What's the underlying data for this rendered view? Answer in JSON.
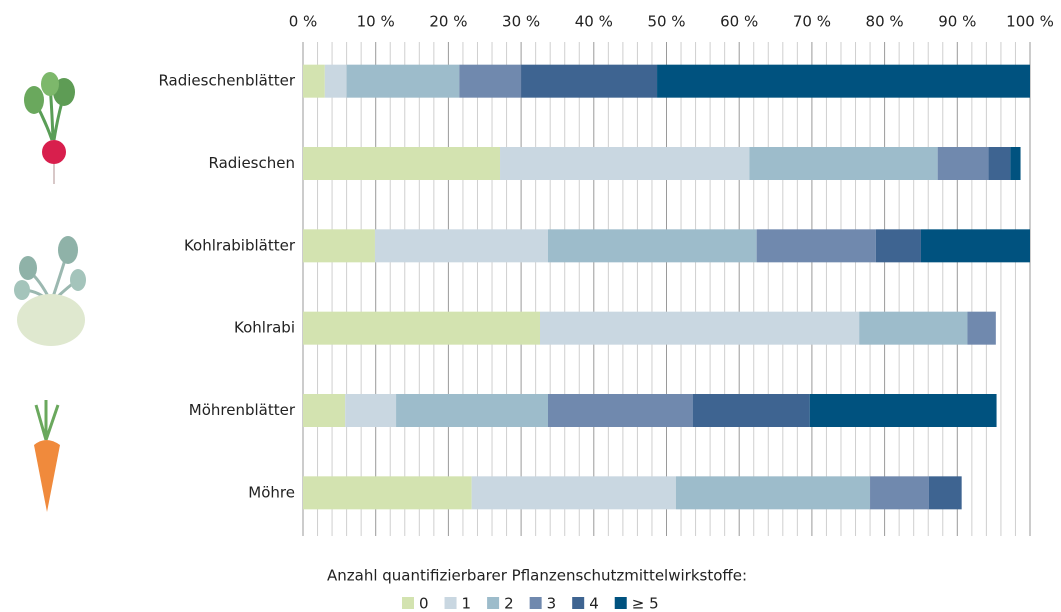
{
  "chart_data": {
    "type": "stacked-bar-horizontal",
    "categories": [
      "Radieschenblätter",
      "Radieschen",
      "Kohlrabiblätter",
      "Kohlrabi",
      "Möhrenblätter",
      "Möhre"
    ],
    "series": [
      {
        "name": "0",
        "color": "#d3e3b0",
        "values": [
          3,
          27.1,
          9.9,
          32.6,
          5.8,
          23.2
        ]
      },
      {
        "name": "1",
        "color": "#c9d7e1",
        "values": [
          3,
          34.3,
          23.8,
          43.9,
          7,
          28.1
        ]
      },
      {
        "name": "2",
        "color": "#9dbccb",
        "values": [
          15.5,
          25.9,
          28.7,
          14.9,
          20.9,
          26.7
        ]
      },
      {
        "name": "3",
        "color": "#7089ae",
        "values": [
          8.5,
          7,
          16.4,
          3.9,
          19.9,
          8.1
        ]
      },
      {
        "name": "4",
        "color": "#3e6491",
        "values": [
          18.7,
          3,
          6.2,
          0,
          16.1,
          4.5
        ]
      },
      {
        "name": "≥ 5",
        "color": "#00527f",
        "values": [
          51.3,
          1.4,
          15,
          0,
          25.7,
          0
        ]
      }
    ],
    "xlim": [
      0,
      100
    ],
    "xticks": [
      {
        "value": 0,
        "label": "0 %"
      },
      {
        "value": 10,
        "label": "10 %"
      },
      {
        "value": 20,
        "label": "20 %"
      },
      {
        "value": 30,
        "label": "30 %"
      },
      {
        "value": 40,
        "label": "40 %"
      },
      {
        "value": 50,
        "label": "50 %"
      },
      {
        "value": 60,
        "label": "60 %"
      },
      {
        "value": 70,
        "label": "70 %"
      },
      {
        "value": 80,
        "label": "80 %"
      },
      {
        "value": 90,
        "label": "90 %"
      },
      {
        "value": 100,
        "label": "100 %"
      }
    ],
    "xminorticks": [
      2,
      4,
      6,
      8,
      12,
      14,
      16,
      18,
      22,
      24,
      26,
      28,
      32,
      34,
      36,
      38,
      42,
      44,
      46,
      48,
      52,
      54,
      56,
      58,
      62,
      64,
      66,
      68,
      72,
      74,
      76,
      78,
      82,
      84,
      86,
      88,
      92,
      94,
      96,
      98
    ],
    "grid": true,
    "legend_title": "Anzahl quantifizierbarer Pflanzenschutzmittelwirkstoffe:",
    "legend": "bottom"
  }
}
